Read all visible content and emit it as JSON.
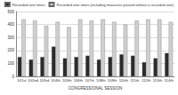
{
  "chart_data": {
    "type": "bar",
    "x_label": "CONGRESSIONAL SESSION",
    "categories": [
      "101st",
      "102nd",
      "103rd",
      "104th",
      "105th",
      "106th",
      "107th",
      "108th",
      "109th",
      "110th",
      "111th",
      "112th",
      "113th",
      "114th"
    ],
    "series": [
      {
        "name": "Recorded vote times",
        "color": "#2b2b2b",
        "values": [
          150,
          130,
          150,
          230,
          140,
          150,
          160,
          130,
          150,
          170,
          160,
          110,
          140,
          180
        ]
      },
      {
        "name": "Recorded vote times (including measures passed without a recorded vote)",
        "color": "#cfcfcf",
        "values": [
          440,
          430,
          390,
          420,
          380,
          440,
          430,
          440,
          420,
          400,
          430,
          440,
          440,
          420
        ]
      }
    ],
    "ylim": [
      0,
      500
    ],
    "yticks": [
      0,
      100,
      200,
      300,
      400,
      500
    ],
    "grid": true,
    "legend": "top"
  }
}
